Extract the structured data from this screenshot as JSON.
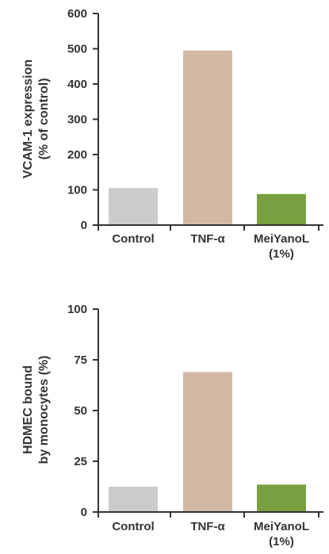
{
  "chart_data": [
    {
      "type": "bar",
      "categories": [
        [
          "Control"
        ],
        [
          "TNF-α"
        ],
        [
          "MeiYanoL",
          "(1%)"
        ]
      ],
      "values": [
        105,
        495,
        88
      ],
      "colors": [
        "#cccccc",
        "#d3b8a5",
        "#78a040"
      ],
      "ylabel": [
        "VCAM-1 expression",
        "(% of control)"
      ],
      "ylim": [
        0,
        600
      ],
      "yticks": [
        0,
        100,
        200,
        300,
        400,
        500,
        600
      ]
    },
    {
      "type": "bar",
      "categories": [
        [
          "Control"
        ],
        [
          "TNF-α"
        ],
        [
          "MeiYanoL",
          "(1%)"
        ]
      ],
      "values": [
        12.5,
        69,
        13.5
      ],
      "colors": [
        "#cccccc",
        "#d3b8a5",
        "#78a040"
      ],
      "ylabel": [
        "HDMEC bound",
        "by monocytes (%)"
      ],
      "ylim": [
        0,
        100
      ],
      "yticks": [
        0,
        25,
        50,
        75,
        100
      ]
    }
  ]
}
